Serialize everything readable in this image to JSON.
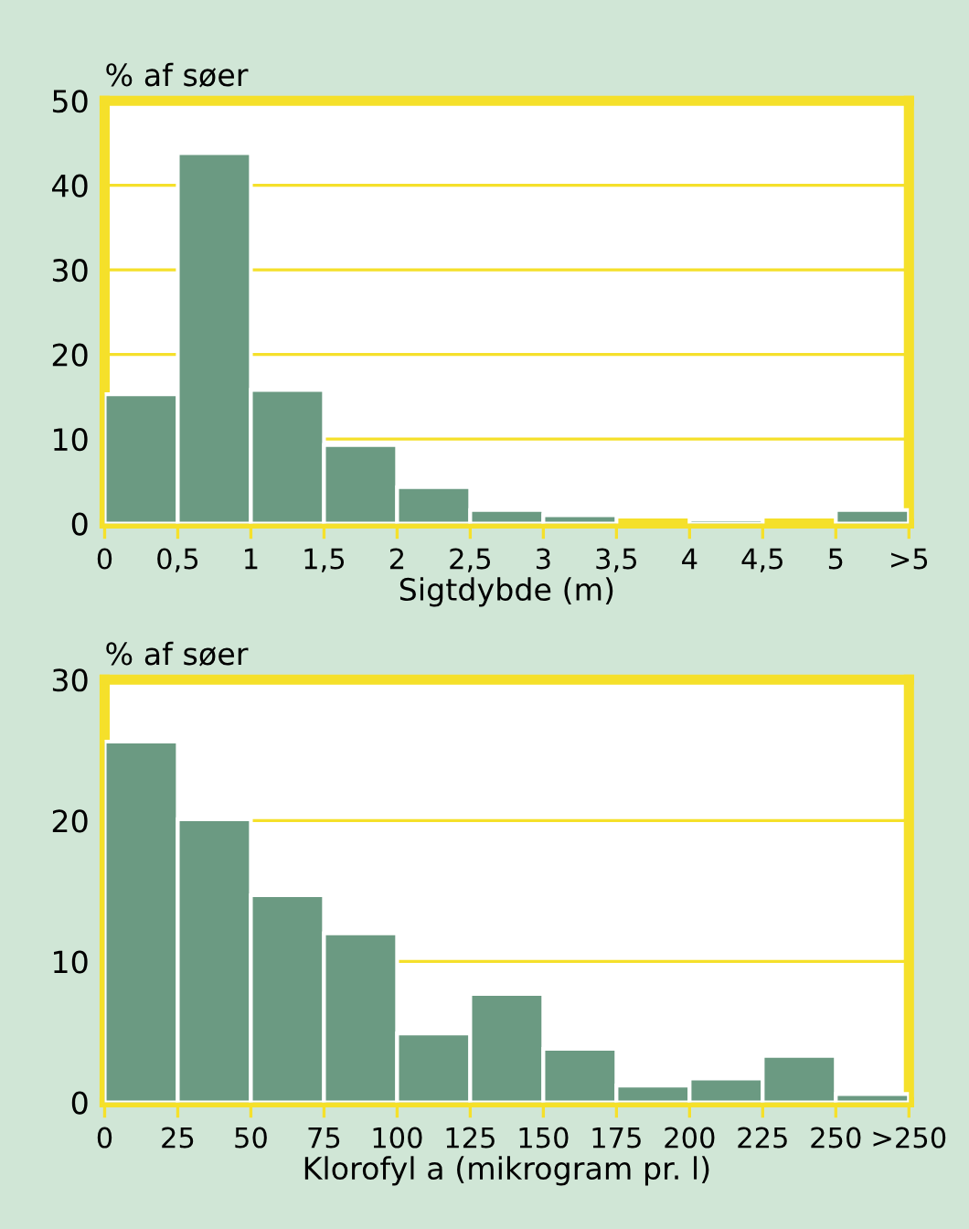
{
  "chart_data": [
    {
      "type": "histogram",
      "xlabel": "Sigtdybde (m)",
      "ylabel": "% af søer",
      "bins": [
        0,
        0.5,
        1,
        1.5,
        2,
        2.5,
        3,
        3.5,
        4,
        4.5,
        5,
        5.5
      ],
      "values": [
        15.3,
        43.8,
        15.8,
        9.3,
        4.3,
        1.6,
        1.0,
        0,
        0.5,
        0,
        1.6
      ],
      "color": "#6b9a82",
      "xlim": [
        0,
        5.5
      ],
      "xticks": [
        0,
        {
          "value": 0.5,
          "label": "0,5"
        },
        1,
        {
          "value": 1.5,
          "label": "1,5"
        },
        2,
        {
          "value": 2.5,
          "label": "2,5"
        },
        3,
        {
          "value": 3.5,
          "label": "3,5"
        },
        4,
        {
          "value": 4.5,
          "label": "4,5"
        },
        5,
        {
          "value": 5.5,
          "label": ">5"
        }
      ],
      "ylim": [
        0,
        50
      ],
      "yticks": [
        0,
        10,
        20,
        30,
        40,
        50
      ],
      "grid": "y"
    },
    {
      "type": "histogram",
      "xlabel": "Klorofyl a (mikrogram pr. l)",
      "ylabel": "% af søer",
      "bins": [
        0,
        25,
        50,
        75,
        100,
        125,
        150,
        175,
        200,
        225,
        250,
        275
      ],
      "values": [
        25.6,
        20.1,
        14.7,
        12.0,
        4.9,
        7.7,
        3.8,
        1.2,
        1.7,
        3.3,
        0.6
      ],
      "color": "#6b9a82",
      "xlim": [
        0,
        275
      ],
      "xticks": [
        0,
        25,
        50,
        75,
        100,
        125,
        150,
        175,
        200,
        225,
        250,
        {
          "value": 275,
          "label": ">250"
        }
      ],
      "ylim": [
        0,
        30
      ],
      "yticks": [
        0,
        10,
        20,
        30
      ],
      "grid": "y"
    }
  ]
}
